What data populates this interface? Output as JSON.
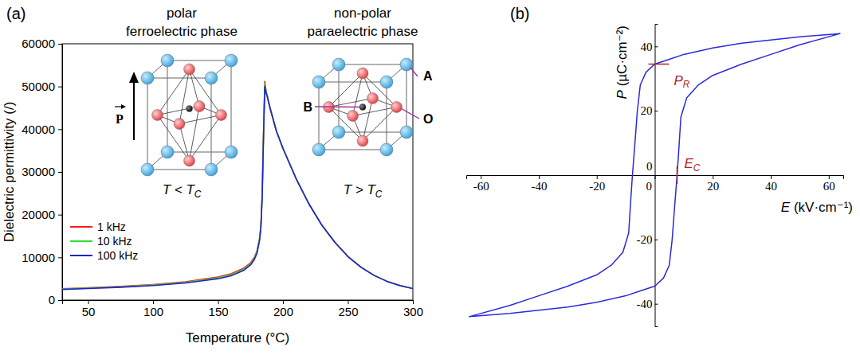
{
  "chart_data": [
    {
      "type": "line",
      "panel_label": "(a)",
      "x_label": "Temperature (°C)",
      "y_label": "Dielectric permittivity (/)",
      "x": [
        30,
        50,
        75,
        100,
        125,
        150,
        160,
        170,
        175,
        178,
        180,
        182,
        183,
        184,
        185,
        186,
        187,
        188,
        190,
        195,
        200,
        210,
        220,
        230,
        240,
        250,
        260,
        270,
        280,
        290,
        300
      ],
      "xlim": [
        30,
        300
      ],
      "xticks": [
        50,
        100,
        150,
        200,
        250,
        300
      ],
      "ylim": [
        0,
        60000
      ],
      "yticks": [
        0,
        10000,
        20000,
        30000,
        40000,
        50000,
        60000
      ],
      "legend": "lower left",
      "series": [
        {
          "name": "1 kHz",
          "color": "#ff1a1a",
          "values": [
            2660,
            2880,
            3200,
            3640,
            4300,
            5400,
            6160,
            7500,
            8700,
            10000,
            11500,
            14500,
            17500,
            25000,
            39000,
            51200,
            48900,
            47700,
            45000,
            39500,
            35500,
            28500,
            22500,
            17500,
            13500,
            10200,
            7700,
            5800,
            4400,
            3400,
            2700
          ]
        },
        {
          "name": "10 kHz",
          "color": "#33dd33",
          "values": [
            2580,
            2790,
            3100,
            3520,
            4150,
            5200,
            5930,
            7250,
            8450,
            9750,
            11250,
            14250,
            17250,
            24500,
            38500,
            50700,
            48700,
            47600,
            45000,
            39500,
            35500,
            28500,
            22500,
            17500,
            13500,
            10200,
            7700,
            5800,
            4400,
            3400,
            2700
          ]
        },
        {
          "name": "100 kHz",
          "color": "#2222cc",
          "values": [
            2500,
            2700,
            3000,
            3400,
            4000,
            5000,
            5700,
            7000,
            8200,
            9500,
            11000,
            14000,
            17000,
            24000,
            38000,
            50000,
            48500,
            47500,
            45000,
            39500,
            35500,
            28500,
            22500,
            17500,
            13500,
            10200,
            7700,
            5800,
            4400,
            3400,
            2700
          ]
        }
      ],
      "annotations": [
        "polar",
        "ferroelectric phase",
        "non-polar",
        "paraelectric phase",
        {
          "text": "T < T",
          "subscript": "C"
        },
        {
          "text": "T > T",
          "subscript": "C"
        },
        "A",
        "B",
        "O",
        "P"
      ]
    },
    {
      "type": "line",
      "panel_label": "(b)",
      "x_label": "E (kV·cm⁻¹)",
      "y_label": "P (µC·cm⁻²)",
      "x": [
        64,
        50,
        40,
        30,
        20,
        10,
        5,
        0,
        -3,
        -5,
        -6,
        -7,
        -7.7,
        -8.3,
        -9,
        -11,
        -15,
        -20,
        -30,
        -40,
        -50,
        -64,
        -50,
        -40,
        -30,
        -20,
        -10,
        -5,
        0,
        3,
        5,
        6,
        7,
        7.7,
        8.3,
        9,
        11,
        15,
        20,
        30,
        40,
        50,
        64
      ],
      "xlim": [
        -65,
        65
      ],
      "xticks": [
        -60,
        -40,
        -20,
        0,
        20,
        40,
        60
      ],
      "ylim": [
        -47,
        47
      ],
      "yticks": [
        -40,
        -20,
        0,
        20,
        40
      ],
      "series": [
        {
          "color": "#2b2bd9",
          "values": [
            44,
            43,
            42,
            41,
            39.5,
            37.5,
            36,
            34.5,
            32,
            28,
            20,
            8,
            0,
            -8,
            -18,
            -24,
            -28,
            -31,
            -34.5,
            -37.5,
            -40.5,
            -44,
            -43,
            -42,
            -41,
            -39.5,
            -37.5,
            -36,
            -34.5,
            -32,
            -28,
            -20,
            -8,
            0,
            8,
            18,
            24,
            28,
            31,
            34.5,
            37.5,
            40.5,
            44
          ]
        }
      ],
      "annotations": [
        {
          "text": "P",
          "subscript": "R",
          "x": 0,
          "y": 34.5
        },
        {
          "text": "E",
          "subscript": "C",
          "x": 7.7,
          "y": 0
        }
      ]
    }
  ]
}
